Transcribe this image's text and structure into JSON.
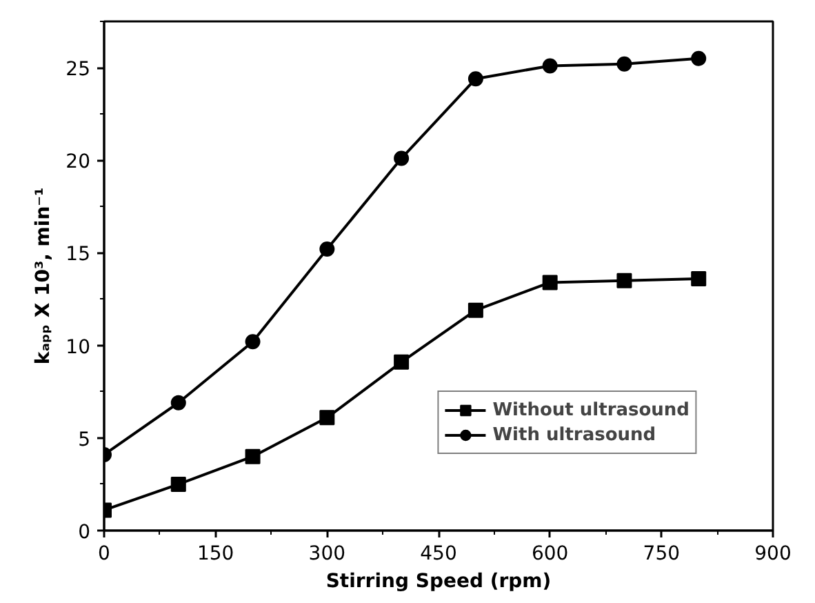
{
  "chart_data": {
    "type": "line",
    "xlabel": "Stirring Speed (rpm)",
    "ylabel": "kₐₚₚ X 10³, min⁻¹",
    "x": [
      0,
      100,
      200,
      300,
      400,
      500,
      600,
      700,
      800
    ],
    "series": [
      {
        "name": "Without ultrasound",
        "color": "#000000",
        "marker": "square",
        "values": [
          1.1,
          2.5,
          4.0,
          6.1,
          9.1,
          11.9,
          13.4,
          13.5,
          13.6
        ]
      },
      {
        "name": "With ultrasound",
        "color": "#000000",
        "marker": "circle",
        "values": [
          4.1,
          6.9,
          10.2,
          15.2,
          20.1,
          24.4,
          25.1,
          25.2,
          25.5
        ]
      }
    ],
    "xlim": [
      0,
      900
    ],
    "xticks": [
      0,
      150,
      300,
      450,
      600,
      750,
      900
    ],
    "ylim": [
      0,
      27.5
    ],
    "yticks": [
      0,
      5,
      10,
      15,
      20,
      25
    ],
    "grid": false,
    "legend": "bottom right",
    "line_style": "solid"
  }
}
